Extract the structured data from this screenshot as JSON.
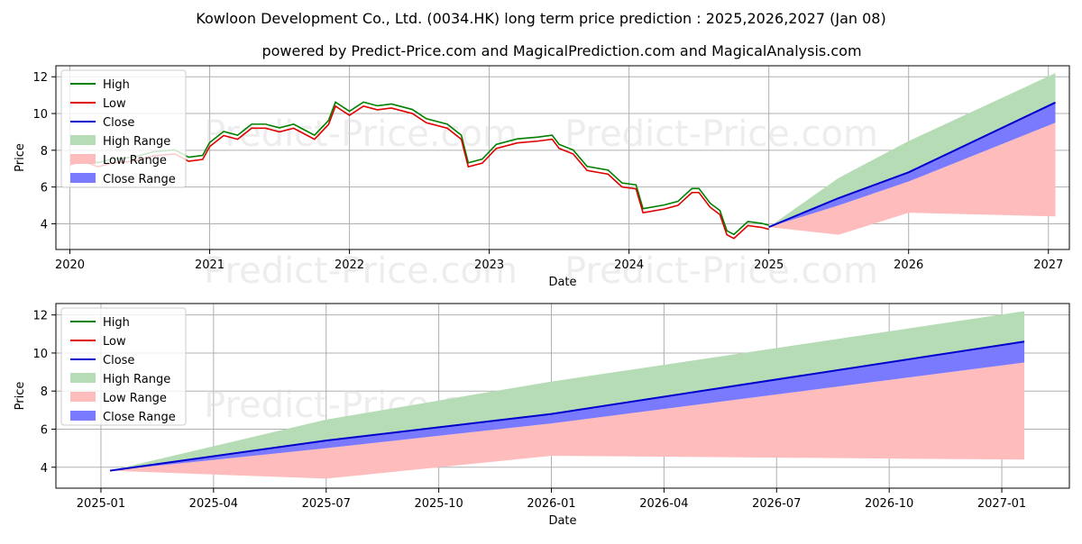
{
  "header": {
    "title": "Kowloon Development Co., Ltd. (0034.HK) long term price prediction : 2025,2026,2027 (Jan 08)",
    "subtitle": "powered by Predict-Price.com and MagicalPrediction.com and MagicalAnalysis.com"
  },
  "watermark": "Predict-Price.com",
  "colors": {
    "high": "#008000",
    "low": "#e00000",
    "close": "#0000cc",
    "high_range": "#b5dcb5",
    "low_range": "#ffbcbc",
    "close_range": "#7a7aff"
  },
  "chart_data": [
    {
      "type": "line",
      "xlabel": "Date",
      "ylabel": "Price",
      "xlim": [
        2019.9,
        2027.15
      ],
      "ylim": [
        2.6,
        12.6
      ],
      "xticks": [
        2020,
        2021,
        2022,
        2023,
        2024,
        2025,
        2026,
        2027
      ],
      "xtick_labels": [
        "2020",
        "2021",
        "2022",
        "2023",
        "2024",
        "2025",
        "2026",
        "2027"
      ],
      "yticks": [
        4,
        6,
        8,
        10,
        12
      ],
      "ytick_labels": [
        "4",
        "6",
        "8",
        "10",
        "12"
      ],
      "grid": true,
      "legend_position": "upper-left",
      "legend": [
        "High",
        "Low",
        "Close",
        "High Range",
        "Low Range",
        "Close Range"
      ],
      "history": {
        "x": [
          2020.0,
          2020.1,
          2020.2,
          2020.3,
          2020.45,
          2020.6,
          2020.75,
          2020.85,
          2020.95,
          2021.0,
          2021.1,
          2021.2,
          2021.3,
          2021.4,
          2021.5,
          2021.6,
          2021.75,
          2021.85,
          2021.9,
          2022.0,
          2022.1,
          2022.2,
          2022.3,
          2022.45,
          2022.55,
          2022.7,
          2022.8,
          2022.85,
          2022.95,
          2023.05,
          2023.2,
          2023.35,
          2023.45,
          2023.5,
          2023.6,
          2023.7,
          2023.85,
          2023.95,
          2024.05,
          2024.1,
          2024.25,
          2024.35,
          2024.45,
          2024.5,
          2024.58,
          2024.65,
          2024.7,
          2024.75,
          2024.85,
          2024.95,
          2025.0
        ],
        "close": [
          7.3,
          7.5,
          7.2,
          7.4,
          7.5,
          7.8,
          7.9,
          7.5,
          7.6,
          8.3,
          8.9,
          8.7,
          9.3,
          9.3,
          9.1,
          9.3,
          8.7,
          9.5,
          10.5,
          10.0,
          10.5,
          10.3,
          10.4,
          10.1,
          9.6,
          9.3,
          8.7,
          7.2,
          7.4,
          8.2,
          8.5,
          8.6,
          8.7,
          8.2,
          7.9,
          7.0,
          6.8,
          6.1,
          6.0,
          4.7,
          4.9,
          5.1,
          5.8,
          5.8,
          5.0,
          4.6,
          3.5,
          3.3,
          4.0,
          3.9,
          3.8
        ]
      },
      "forecast": {
        "x": [
          2025.0,
          2025.5,
          2026.0,
          2027.05
        ],
        "close": [
          3.82,
          5.4,
          6.8,
          10.6
        ],
        "high_range_upper": [
          3.82,
          6.5,
          8.5,
          12.2
        ],
        "low_range_lower": [
          3.82,
          3.4,
          4.6,
          4.4
        ],
        "close_range_lower": [
          3.82,
          5.0,
          6.3,
          9.5
        ]
      }
    },
    {
      "type": "line",
      "xlabel": "Date",
      "ylabel": "Price",
      "xlim": [
        2024.9,
        2027.15
      ],
      "ylim": [
        2.9,
        12.6
      ],
      "xticks": [
        2025.0,
        2025.25,
        2025.5,
        2025.75,
        2026.0,
        2026.25,
        2026.5,
        2026.75,
        2027.0
      ],
      "xtick_labels": [
        "2025-01",
        "2025-04",
        "2025-07",
        "2025-10",
        "2026-01",
        "2026-04",
        "2026-07",
        "2026-10",
        "2027-01"
      ],
      "yticks": [
        4,
        6,
        8,
        10,
        12
      ],
      "ytick_labels": [
        "4",
        "6",
        "8",
        "10",
        "12"
      ],
      "grid": true,
      "legend_position": "upper-left",
      "legend": [
        "High",
        "Low",
        "Close",
        "High Range",
        "Low Range",
        "Close Range"
      ],
      "forecast": {
        "x": [
          2025.02,
          2025.5,
          2026.0,
          2027.05
        ],
        "close": [
          3.82,
          5.4,
          6.8,
          10.6
        ],
        "high_range_upper": [
          3.82,
          6.5,
          8.5,
          12.2
        ],
        "low_range_lower": [
          3.82,
          3.4,
          4.6,
          4.4
        ],
        "close_range_lower": [
          3.82,
          5.0,
          6.3,
          9.5
        ]
      }
    }
  ]
}
